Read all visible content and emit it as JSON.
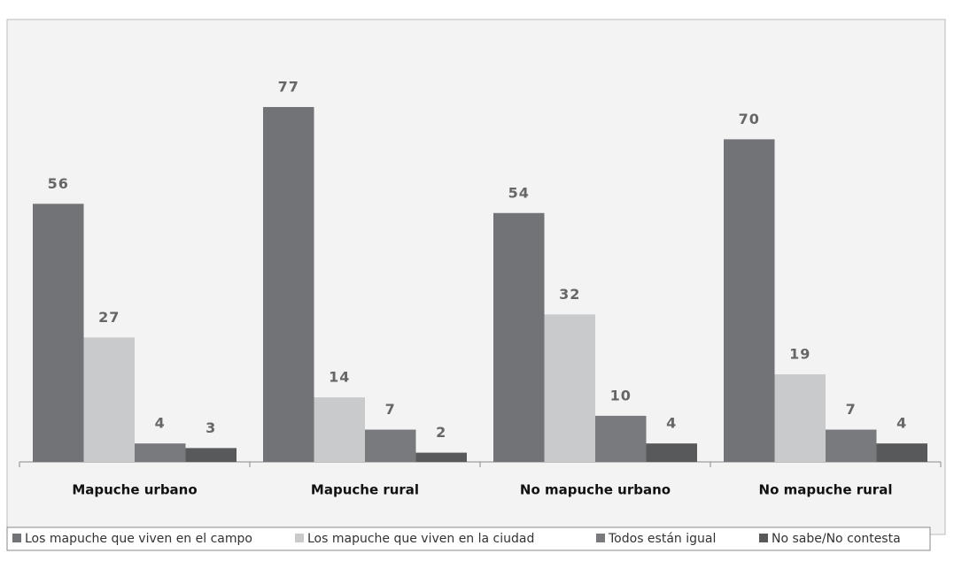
{
  "chart_data": {
    "type": "bar",
    "categories": [
      "Mapuche urbano",
      "Mapuche rural",
      "No mapuche urbano",
      "No mapuche rural"
    ],
    "series": [
      {
        "name": "Los mapuche que viven en el campo",
        "color": "#727377",
        "values": [
          56,
          77,
          54,
          70
        ]
      },
      {
        "name": "Los mapuche que viven en la ciudad",
        "color": "#c9cacc",
        "values": [
          27,
          14,
          32,
          19
        ]
      },
      {
        "name": "Todos están igual",
        "color": "#797a7d",
        "values": [
          4,
          7,
          10,
          7
        ]
      },
      {
        "name": "No sabe/No contesta",
        "color": "#58595b",
        "values": [
          3,
          2,
          4,
          4
        ]
      }
    ],
    "ylim": [
      0,
      96
    ],
    "legend": "bottom"
  }
}
